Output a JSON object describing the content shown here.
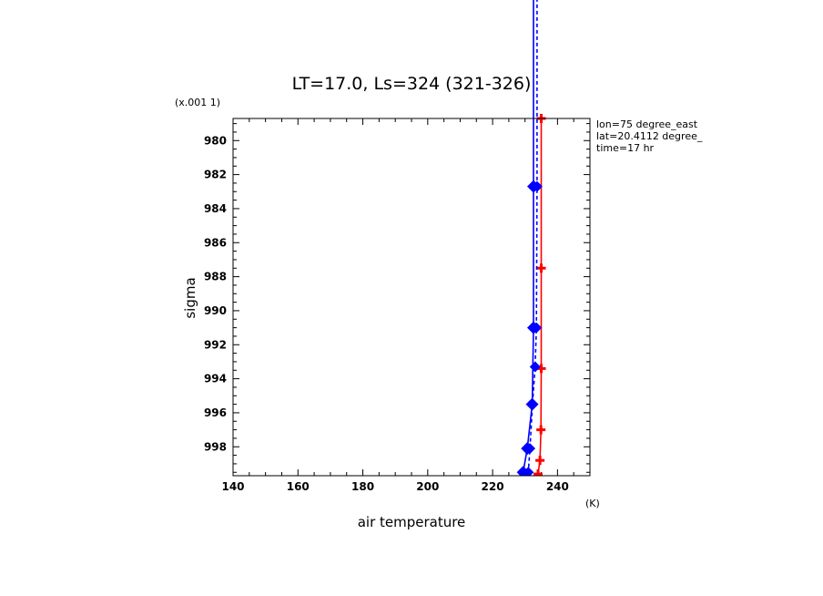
{
  "chart_data": {
    "type": "line",
    "title": "LT=17.0, Ls=324 (321-326)",
    "xlabel": "air temperature",
    "x_unit": "(K)",
    "ylabel": "sigma",
    "y_multiplier": "(x.001 1)",
    "xlim": [
      140,
      250
    ],
    "ylim": [
      999.7,
      978.7
    ],
    "x_ticks": [
      140,
      160,
      180,
      200,
      220,
      240
    ],
    "y_ticks": [
      980,
      982,
      984,
      986,
      988,
      990,
      992,
      994,
      996,
      998
    ],
    "grid": false,
    "annotations": [
      "lon=75 degree_east",
      "lat=20.4112 degree_",
      "time=17 hr"
    ],
    "series": [
      {
        "color": "#ff0000",
        "line": "solid",
        "marker": "plus",
        "points": [
          {
            "x": 235.0,
            "y": 978.7
          },
          {
            "x": 235.0,
            "y": 987.5
          },
          {
            "x": 235.0,
            "y": 993.4
          },
          {
            "x": 234.9,
            "y": 997.0
          },
          {
            "x": 234.6,
            "y": 998.8
          },
          {
            "x": 234.0,
            "y": 999.6
          }
        ]
      },
      {
        "color": "#0000ff",
        "line": "solid",
        "marker": "diamond",
        "points": [
          {
            "x": 232.6,
            "y": 960.0
          },
          {
            "x": 232.6,
            "y": 982.7
          },
          {
            "x": 232.6,
            "y": 991.0
          },
          {
            "x": 232.2,
            "y": 995.5
          },
          {
            "x": 230.7,
            "y": 998.1
          },
          {
            "x": 229.4,
            "y": 999.5
          }
        ]
      },
      {
        "color": "#0000ff",
        "line": "dashed",
        "marker": "diamond",
        "points": [
          {
            "x": 233.7,
            "y": 960.0
          },
          {
            "x": 233.7,
            "y": 982.7
          },
          {
            "x": 233.5,
            "y": 991.0
          },
          {
            "x": 233.1,
            "y": 993.3
          },
          {
            "x": 232.3,
            "y": 995.5
          },
          {
            "x": 231.5,
            "y": 998.1
          },
          {
            "x": 231.0,
            "y": 999.5
          }
        ]
      }
    ]
  }
}
